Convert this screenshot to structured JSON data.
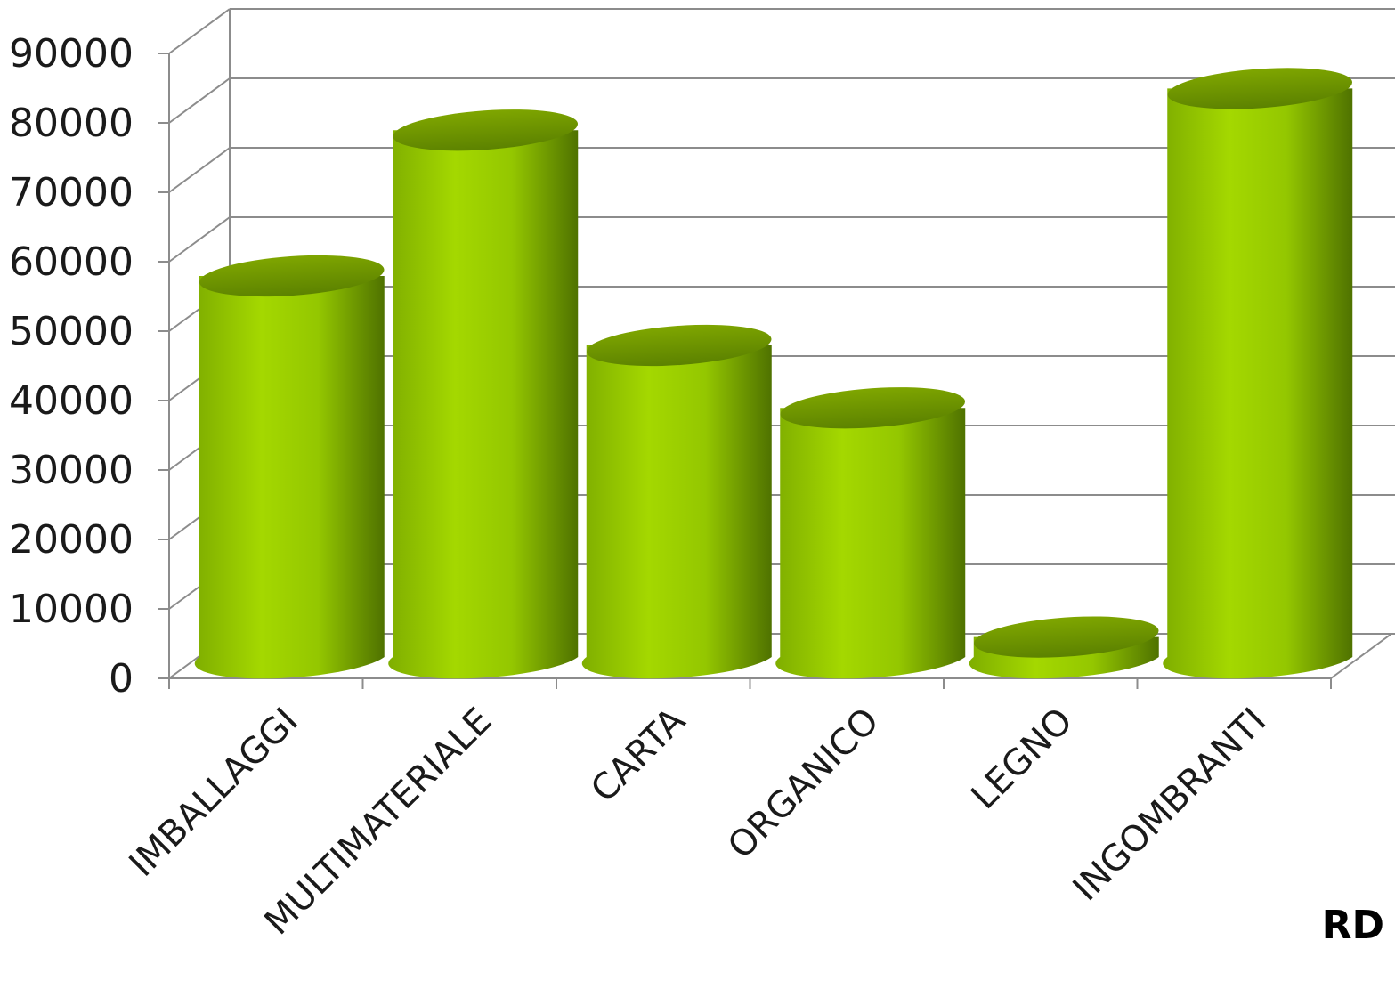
{
  "chart_data": {
    "type": "bar",
    "style": "3d-cylinder",
    "categories": [
      "IMBALLAGGI",
      "MULTIMATERIALE",
      "CARTA",
      "ORGANICO",
      "LEGNO",
      "INGOMBRANTI"
    ],
    "series": [
      {
        "name": "RD",
        "values": [
          55000,
          76000,
          45000,
          36000,
          3000,
          82000
        ]
      }
    ],
    "ylim": [
      0,
      90000
    ],
    "yticks": [
      0,
      10000,
      20000,
      30000,
      40000,
      50000,
      60000,
      70000,
      80000,
      90000
    ],
    "grid": true,
    "legend_position": "bottom-right",
    "colors": {
      "bar_light": "#9fd400",
      "bar_mid": "#86b800",
      "bar_dark": "#557a00",
      "bar_top": "#6f9600",
      "grid": "#8c8c8c"
    }
  }
}
